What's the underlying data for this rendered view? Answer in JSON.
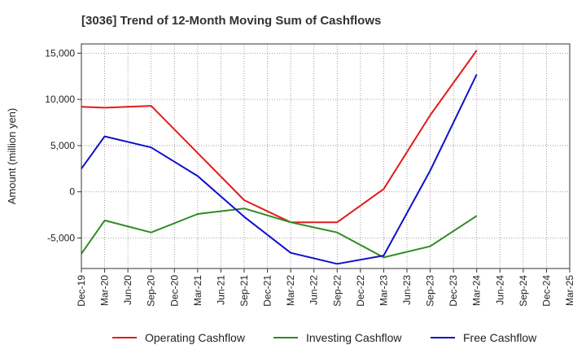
{
  "chart_data": {
    "type": "line",
    "title": "[3036]  Trend of 12-Month Moving Sum of Cashflows",
    "xlabel": "",
    "ylabel": "Amount (million yen)",
    "ylim": [
      -8300,
      16000
    ],
    "yticks": [
      15000,
      10000,
      5000,
      0,
      -5000
    ],
    "ytick_labels": [
      "15,000",
      "10,000",
      "5,000",
      "0",
      "-5,000"
    ],
    "categories": [
      "Dec-19",
      "Mar-20",
      "Jun-20",
      "Sep-20",
      "Dec-20",
      "Mar-21",
      "Jun-21",
      "Sep-21",
      "Dec-21",
      "Mar-22",
      "Jun-22",
      "Sep-22",
      "Dec-22",
      "Mar-23",
      "Jun-23",
      "Sep-23",
      "Dec-23",
      "Mar-24",
      "Jun-24",
      "Sep-24",
      "Dec-24",
      "Mar-25"
    ],
    "grid": true,
    "legend_position": "bottom",
    "series": [
      {
        "name": "Operating Cashflow",
        "color": "#e41a1c",
        "values": [
          9200,
          9100,
          null,
          9300,
          null,
          null,
          null,
          -900,
          null,
          -3300,
          null,
          -3300,
          null,
          300,
          null,
          8300,
          null,
          15300,
          null,
          null,
          null,
          null
        ]
      },
      {
        "name": "Investing Cashflow",
        "color": "#2e8b22",
        "values": [
          -6700,
          -3100,
          null,
          -4400,
          null,
          -2400,
          null,
          -1800,
          null,
          -3300,
          null,
          -4400,
          null,
          -7100,
          null,
          -5900,
          null,
          -2600,
          null,
          null,
          null,
          null
        ]
      },
      {
        "name": "Free Cashflow",
        "color": "#1010cc",
        "values": [
          2500,
          6000,
          null,
          4800,
          null,
          1700,
          null,
          -2700,
          null,
          -6600,
          null,
          -7800,
          null,
          -6900,
          null,
          2300,
          null,
          12700,
          null,
          null,
          null,
          null
        ]
      }
    ]
  }
}
